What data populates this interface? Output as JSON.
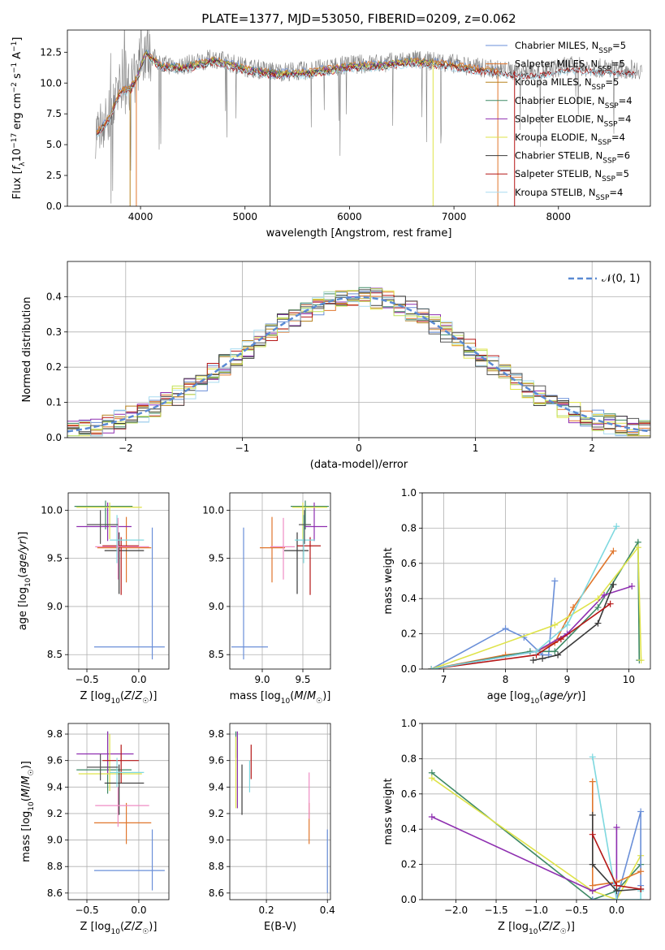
{
  "title": "PLATE=1377, MJD=53050, FIBERID=0209, z=0.062",
  "colors": {
    "Chabrier MILES": "#6a8fd8",
    "Salpeter MILES": "#e0762c",
    "Kroupa MILES": "#b7821f",
    "Chabrier ELODIE": "#3f8a66",
    "Salpeter ELODIE": "#8e2fb0",
    "Kroupa ELODIE": "#dfe34a",
    "Chabrier STELIB": "#3a3a3a",
    "Salpeter STELIB": "#b51616",
    "Kroupa STELIB": "#a9dbf0",
    "extra_pink": "#ef8cc4",
    "extra_cyan": "#7ed8df",
    "extra_gray": "#555555",
    "extra_lime": "#bfe05a",
    "normal": "#5a8ad3"
  },
  "chart_data": [
    {
      "id": "spectrum",
      "type": "line",
      "title": "PLATE=1377, MJD=53050, FIBERID=0209, z=0.062",
      "xlabel": "wavelength [Angstrom, rest frame]",
      "ylabel": "Flux [f_λ 10^-17 erg cm^-2 s^-1 A^-1]",
      "xlim": [
        3300,
        8880
      ],
      "ylim": [
        0,
        14.3
      ],
      "xticks": [
        4000,
        5000,
        6000,
        7000,
        8000
      ],
      "xtick_labels": [
        "4000",
        "5000",
        "6000",
        "7000",
        "8000"
      ],
      "yticks": [
        0,
        2.5,
        5,
        7.5,
        10,
        12.5
      ],
      "ytick_labels": [
        "0.0",
        "2.5",
        "5.0",
        "7.5",
        "10.0",
        "12.5"
      ],
      "grid": false,
      "legend_position": "top-right",
      "continuum": {
        "x": [
          3580,
          3650,
          3700,
          3800,
          3900,
          3970,
          4050,
          4200,
          4400,
          4700,
          5000,
          5300,
          5600,
          6000,
          6300,
          6600,
          6900,
          7200,
          7500,
          7800,
          8100,
          8400,
          8700
        ],
        "y": [
          6.1,
          6.8,
          7.2,
          9.4,
          9.7,
          10.6,
          12.6,
          11.5,
          11.4,
          12.0,
          11.3,
          10.9,
          11.0,
          11.5,
          11.6,
          11.9,
          11.7,
          11.3,
          11.0,
          10.9,
          11.4,
          11.2,
          11.1
        ]
      },
      "series": [
        {
          "name": "Chabrier MILES",
          "label": "N_SSP=5",
          "x_range": [
            3580,
            7420
          ]
        },
        {
          "name": "Salpeter MILES",
          "label": "N_SSP=5",
          "x_range": [
            3580,
            7420
          ]
        },
        {
          "name": "Kroupa MILES",
          "label": "N_SSP=5",
          "x_range": [
            3580,
            7420
          ]
        },
        {
          "name": "Chabrier ELODIE",
          "label": "N_SSP=4",
          "x_range": [
            3900,
            6800
          ]
        },
        {
          "name": "Salpeter ELODIE",
          "label": "N_SSP=4",
          "x_range": [
            3900,
            6800
          ]
        },
        {
          "name": "Kroupa ELODIE",
          "label": "N_SSP=4",
          "x_range": [
            3900,
            6800
          ]
        },
        {
          "name": "Chabrier STELIB",
          "label": "N_SSP=6",
          "x_range": [
            3580,
            8750
          ]
        },
        {
          "name": "Salpeter STELIB",
          "label": "N_SSP=5",
          "x_range": [
            3580,
            8750
          ]
        },
        {
          "name": "Kroupa STELIB",
          "label": "N_SSP=4",
          "x_range": [
            3580,
            8750
          ]
        }
      ],
      "data_series": {
        "name": "data",
        "color": "#808080",
        "x_range": [
          3570,
          8800
        ]
      }
    },
    {
      "id": "residuals",
      "type": "line",
      "xlabel": "(data-model)/error",
      "ylabel": "Normed distribution",
      "xlim": [
        -2.5,
        2.5
      ],
      "ylim": [
        0,
        0.5
      ],
      "xticks": [
        -2,
        -1,
        0,
        1,
        2
      ],
      "xtick_labels": [
        "−2",
        "−1",
        "0",
        "1",
        "2"
      ],
      "yticks": [
        0,
        0.1,
        0.2,
        0.3,
        0.4
      ],
      "ytick_labels": [
        "0.0",
        "0.1",
        "0.2",
        "0.3",
        "0.4"
      ],
      "grid": true,
      "legend_position": "top-right",
      "legend_label": "𝒩(0, 1)",
      "normal_curve": {
        "mean": 0,
        "sigma": 1
      },
      "bin_width": 0.1
    },
    {
      "id": "age-vs-metallicity",
      "type": "scatter",
      "xlabel": "Z [log10(Z/Z☉)]",
      "ylabel": "age  [log10(age/yr)]",
      "xlim": [
        -0.68,
        0.29
      ],
      "ylim": [
        8.35,
        10.18
      ],
      "xticks": [
        -0.5,
        0
      ],
      "xtick_labels": [
        "−0.5",
        "0.0"
      ],
      "yticks": [
        8.5,
        9,
        9.5,
        10
      ],
      "ytick_labels": [
        "8.5",
        "9.0",
        "9.5",
        "10.0"
      ],
      "grid": true,
      "errorbars": [
        {
          "color": "Chabrier MILES",
          "x": 0.13,
          "y": 8.58,
          "x0": -0.43,
          "x1": 0.25,
          "y0": 8.45,
          "y1": 9.82
        },
        {
          "color": "Salpeter MILES",
          "x": -0.12,
          "y": 9.61,
          "x0": -0.4,
          "x1": 0.12,
          "y0": 9.25,
          "y1": 9.93
        },
        {
          "color": "Chabrier ELODIE",
          "x": -0.32,
          "y": 10.04,
          "x0": -0.62,
          "x1": -0.06,
          "y0": 9.8,
          "y1": 10.1
        },
        {
          "color": "Salpeter ELODIE",
          "x": -0.3,
          "y": 9.83,
          "x0": -0.6,
          "x1": -0.07,
          "y0": 9.68,
          "y1": 10.08
        },
        {
          "color": "Kroupa ELODIE",
          "x": -0.28,
          "y": 10.03,
          "x0": -0.6,
          "x1": 0.03,
          "y0": 9.7,
          "y1": 10.08
        },
        {
          "color": "Chabrier STELIB",
          "x": -0.19,
          "y": 9.58,
          "x0": -0.33,
          "x1": 0.05,
          "y0": 9.13,
          "y1": 9.77
        },
        {
          "color": "Salpeter STELIB",
          "x": -0.17,
          "y": 9.63,
          "x0": -0.35,
          "x1": 0.0,
          "y0": 9.12,
          "y1": 9.72
        },
        {
          "color": "extra_pink",
          "x": -0.2,
          "y": 9.62,
          "x0": -0.42,
          "x1": 0.1,
          "y0": 9.28,
          "y1": 9.92
        },
        {
          "color": "extra_cyan",
          "x": -0.21,
          "y": 9.69,
          "x0": -0.28,
          "x1": 0.05,
          "y0": 9.45,
          "y1": 9.95
        },
        {
          "color": "extra_gray",
          "x": -0.37,
          "y": 9.85,
          "x0": -0.5,
          "x1": -0.2,
          "y0": 9.65,
          "y1": 10.0
        }
      ]
    },
    {
      "id": "age-vs-mass",
      "type": "scatter",
      "xlabel": "mass [log10(M/M☉)]",
      "ylabel": "",
      "xlim": [
        8.6,
        9.84
      ],
      "ylim": [
        8.35,
        10.18
      ],
      "xticks": [
        9,
        9.5
      ],
      "xtick_labels": [
        "9.0",
        "9.5"
      ],
      "yticks": [
        8.5,
        9,
        9.5,
        10
      ],
      "ytick_labels": [
        "8.5",
        "9.0",
        "9.5",
        "10.0"
      ],
      "grid": true,
      "errorbars": [
        {
          "color": "Chabrier MILES",
          "x": 8.77,
          "y": 8.58,
          "x0": 8.62,
          "x1": 9.07,
          "y0": 8.45,
          "y1": 9.82
        },
        {
          "color": "Salpeter MILES",
          "x": 9.12,
          "y": 9.61,
          "x0": 8.97,
          "x1": 9.28,
          "y0": 9.25,
          "y1": 9.93
        },
        {
          "color": "Chabrier ELODIE",
          "x": 9.53,
          "y": 10.04,
          "x0": 9.35,
          "x1": 9.82,
          "y0": 9.8,
          "y1": 10.1
        },
        {
          "color": "Salpeter ELODIE",
          "x": 9.64,
          "y": 9.83,
          "x0": 9.5,
          "x1": 9.8,
          "y0": 9.68,
          "y1": 10.08
        },
        {
          "color": "Kroupa ELODIE",
          "x": 9.5,
          "y": 10.03,
          "x0": 9.37,
          "x1": 9.8,
          "y0": 9.7,
          "y1": 10.08
        },
        {
          "color": "Chabrier STELIB",
          "x": 9.43,
          "y": 9.58,
          "x0": 9.27,
          "x1": 9.57,
          "y0": 9.13,
          "y1": 9.77
        },
        {
          "color": "Salpeter STELIB",
          "x": 9.59,
          "y": 9.63,
          "x0": 9.43,
          "x1": 9.72,
          "y0": 9.12,
          "y1": 9.72
        },
        {
          "color": "extra_pink",
          "x": 9.26,
          "y": 9.62,
          "x0": 9.1,
          "x1": 9.4,
          "y0": 9.28,
          "y1": 9.92
        },
        {
          "color": "extra_cyan",
          "x": 9.51,
          "y": 9.69,
          "x0": 9.4,
          "x1": 9.65,
          "y0": 9.45,
          "y1": 9.95
        },
        {
          "color": "extra_gray",
          "x": 9.52,
          "y": 9.85,
          "x0": 9.45,
          "x1": 9.6,
          "y0": 9.65,
          "y1": 10.0
        }
      ]
    },
    {
      "id": "massweight-vs-age",
      "type": "line",
      "xlabel": "age  [log10(age/yr)]",
      "ylabel": "mass weight",
      "xlim": [
        6.65,
        10.35
      ],
      "ylim": [
        0,
        1
      ],
      "xticks": [
        7,
        8,
        9,
        10
      ],
      "xtick_labels": [
        "7",
        "8",
        "9",
        "10"
      ],
      "yticks": [
        0,
        0.2,
        0.4,
        0.6,
        0.8,
        1.0
      ],
      "ytick_labels": [
        "0.0",
        "0.2",
        "0.4",
        "0.6",
        "0.8",
        "1.0"
      ],
      "grid": true,
      "series": [
        {
          "color": "Chabrier MILES",
          "x": [
            6.8,
            8.0,
            8.3,
            8.6,
            8.7,
            8.8
          ],
          "y": [
            0.0,
            0.23,
            0.18,
            0.08,
            0.08,
            0.5
          ]
        },
        {
          "color": "Salpeter MILES",
          "x": [
            6.8,
            8.0,
            8.5,
            8.8,
            9.1,
            9.75
          ],
          "y": [
            0.0,
            0.08,
            0.1,
            0.15,
            0.35,
            0.67
          ]
        },
        {
          "color": "Chabrier ELODIE",
          "x": [
            6.8,
            8.4,
            8.8,
            9.5,
            10.15,
            10.17
          ],
          "y": [
            0.0,
            0.1,
            0.1,
            0.35,
            0.72,
            0.05
          ]
        },
        {
          "color": "Salpeter ELODIE",
          "x": [
            6.8,
            8.5,
            9.0,
            9.6,
            10.05
          ],
          "y": [
            0.0,
            0.1,
            0.2,
            0.42,
            0.47
          ]
        },
        {
          "color": "Kroupa ELODIE",
          "x": [
            6.8,
            8.8,
            9.5,
            10.15,
            10.2
          ],
          "y": [
            0.0,
            0.25,
            0.4,
            0.69,
            0.05
          ]
        },
        {
          "color": "Chabrier STELIB",
          "x": [
            8.45,
            8.6,
            8.85,
            9.5,
            9.75
          ],
          "y": [
            0.05,
            0.06,
            0.08,
            0.26,
            0.48
          ]
        },
        {
          "color": "Salpeter STELIB",
          "x": [
            6.8,
            8.5,
            8.9,
            9.7
          ],
          "y": [
            0.0,
            0.08,
            0.17,
            0.37
          ]
        },
        {
          "color": "extra_cyan",
          "x": [
            6.8,
            8.5,
            9.0,
            9.8
          ],
          "y": [
            0.0,
            0.1,
            0.25,
            0.81
          ]
        }
      ]
    },
    {
      "id": "mass-vs-metallicity",
      "type": "scatter",
      "xlabel": "Z [log10(Z/Z☉)]",
      "ylabel": "mass [log10(M/M☉)]",
      "xlim": [
        -0.68,
        0.29
      ],
      "ylim": [
        8.55,
        9.88
      ],
      "xticks": [
        -0.5,
        0
      ],
      "xtick_labels": [
        "−0.5",
        "0.0"
      ],
      "yticks": [
        8.6,
        8.8,
        9.0,
        9.2,
        9.4,
        9.6,
        9.8
      ],
      "ytick_labels": [
        "8.6",
        "8.8",
        "9.0",
        "9.2",
        "9.4",
        "9.6",
        "9.8"
      ],
      "grid": true,
      "errorbars": [
        {
          "color": "Chabrier MILES",
          "x": 0.13,
          "y": 8.77,
          "x0": -0.43,
          "x1": 0.25,
          "y0": 8.62,
          "y1": 9.08
        },
        {
          "color": "Salpeter MILES",
          "x": -0.12,
          "y": 9.13,
          "x0": -0.43,
          "x1": 0.12,
          "y0": 8.97,
          "y1": 9.28
        },
        {
          "color": "Chabrier ELODIE",
          "x": -0.3,
          "y": 9.53,
          "x0": -0.6,
          "x1": -0.07,
          "y0": 9.35,
          "y1": 9.82
        },
        {
          "color": "Salpeter ELODIE",
          "x": -0.3,
          "y": 9.65,
          "x0": -0.6,
          "x1": -0.05,
          "y0": 9.5,
          "y1": 9.82
        },
        {
          "color": "Kroupa ELODIE",
          "x": -0.28,
          "y": 9.5,
          "x0": -0.58,
          "x1": 0.03,
          "y0": 9.37,
          "y1": 9.8
        },
        {
          "color": "Chabrier STELIB",
          "x": -0.19,
          "y": 9.43,
          "x0": -0.33,
          "x1": 0.05,
          "y0": 9.19,
          "y1": 9.57
        },
        {
          "color": "Salpeter STELIB",
          "x": -0.17,
          "y": 9.6,
          "x0": -0.35,
          "x1": 0.0,
          "y0": 9.43,
          "y1": 9.72
        },
        {
          "color": "extra_pink",
          "x": -0.2,
          "y": 9.26,
          "x0": -0.42,
          "x1": 0.1,
          "y0": 9.1,
          "y1": 9.4
        },
        {
          "color": "extra_cyan",
          "x": -0.21,
          "y": 9.51,
          "x0": -0.28,
          "x1": 0.05,
          "y0": 9.4,
          "y1": 9.62
        },
        {
          "color": "extra_gray",
          "x": -0.37,
          "y": 9.55,
          "x0": -0.5,
          "x1": -0.2,
          "y0": 9.45,
          "y1": 9.65
        }
      ]
    },
    {
      "id": "mass-vs-ebv",
      "type": "scatter",
      "xlabel": "E(B-V)",
      "ylabel": "",
      "xlim": [
        0.08,
        0.41
      ],
      "ylim": [
        8.55,
        9.88
      ],
      "xticks": [
        0.2,
        0.4
      ],
      "xtick_labels": [
        "0.2",
        "0.4"
      ],
      "yticks": [
        8.6,
        8.8,
        9.0,
        9.2,
        9.4,
        9.6,
        9.8
      ],
      "ytick_labels": [
        "8.6",
        "8.8",
        "9.0",
        "9.2",
        "9.4",
        "9.6",
        "9.8"
      ],
      "grid": true,
      "errorbars": [
        {
          "color": "Chabrier MILES",
          "x": 0.4,
          "y": 8.77,
          "y0": 8.6,
          "y1": 9.08
        },
        {
          "color": "Salpeter MILES",
          "x": 0.34,
          "y": 9.13,
          "y0": 8.97,
          "y1": 9.28
        },
        {
          "color": "extra_pink",
          "x": 0.34,
          "y": 9.33,
          "y0": 9.16,
          "y1": 9.51
        },
        {
          "color": "Chabrier ELODIE",
          "x": 0.1,
          "y": 9.72,
          "y0": 9.62,
          "y1": 9.82
        },
        {
          "color": "Salpeter ELODIE",
          "x": 0.105,
          "y": 9.62,
          "y0": 9.24,
          "y1": 9.82
        },
        {
          "color": "Kroupa ELODIE",
          "x": 0.1,
          "y": 9.5,
          "y0": 9.24,
          "y1": 9.78
        },
        {
          "color": "Chabrier STELIB",
          "x": 0.12,
          "y": 9.4,
          "y0": 9.19,
          "y1": 9.57
        },
        {
          "color": "Salpeter STELIB",
          "x": 0.15,
          "y": 9.6,
          "y0": 9.46,
          "y1": 9.72
        },
        {
          "color": "extra_cyan",
          "x": 0.145,
          "y": 9.51,
          "y0": 9.36,
          "y1": 9.6
        }
      ]
    },
    {
      "id": "massweight-vs-metallicity",
      "type": "line",
      "xlabel": "Z [log10(Z/Z☉)]",
      "ylabel": "mass weight",
      "xlim": [
        -2.42,
        0.42
      ],
      "ylim": [
        0,
        1
      ],
      "xticks": [
        -2.0,
        -1.5,
        -1.0,
        -0.5,
        0.0
      ],
      "xtick_labels": [
        "−2.0",
        "−1.5",
        "−1.0",
        "−0.5",
        "0.0"
      ],
      "yticks": [
        0,
        0.2,
        0.4,
        0.6,
        0.8,
        1.0
      ],
      "ytick_labels": [
        "0.0",
        "0.2",
        "0.4",
        "0.6",
        "0.8",
        "1.0"
      ],
      "grid": true,
      "series": [
        {
          "color": "Chabrier ELODIE",
          "x": [
            -2.3,
            -0.3,
            0.0,
            0.3
          ],
          "y": [
            0.72,
            0.0,
            0.05,
            0.2
          ]
        },
        {
          "color": "Kroupa ELODIE",
          "x": [
            -2.3,
            -0.3,
            0.0,
            0.3
          ],
          "y": [
            0.69,
            0.05,
            0.0,
            0.25
          ]
        },
        {
          "color": "Salpeter ELODIE",
          "x": [
            -2.3,
            -0.3,
            0.0,
            0.0
          ],
          "y": [
            0.47,
            0.05,
            0.1,
            0.41
          ]
        },
        {
          "color": "Chabrier MILES",
          "x": [
            -0.3,
            0.0,
            0.3,
            0.3
          ],
          "y": [
            0.0,
            0.0,
            0.5,
            0.08
          ]
        },
        {
          "color": "Salpeter MILES",
          "x": [
            -0.3,
            -0.3,
            0.0,
            0.3
          ],
          "y": [
            0.67,
            0.08,
            0.1,
            0.16
          ]
        },
        {
          "color": "extra_cyan",
          "x": [
            -0.3,
            0.0,
            0.3,
            0.3
          ],
          "y": [
            0.81,
            0.0,
            0.0,
            0.05
          ]
        },
        {
          "color": "Chabrier STELIB",
          "x": [
            -0.3,
            -0.3,
            0.0,
            0.3
          ],
          "y": [
            0.48,
            0.2,
            0.05,
            0.06
          ]
        },
        {
          "color": "Salpeter STELIB",
          "x": [
            -0.3,
            0.0,
            0.3
          ],
          "y": [
            0.37,
            0.08,
            0.06
          ]
        }
      ]
    }
  ]
}
